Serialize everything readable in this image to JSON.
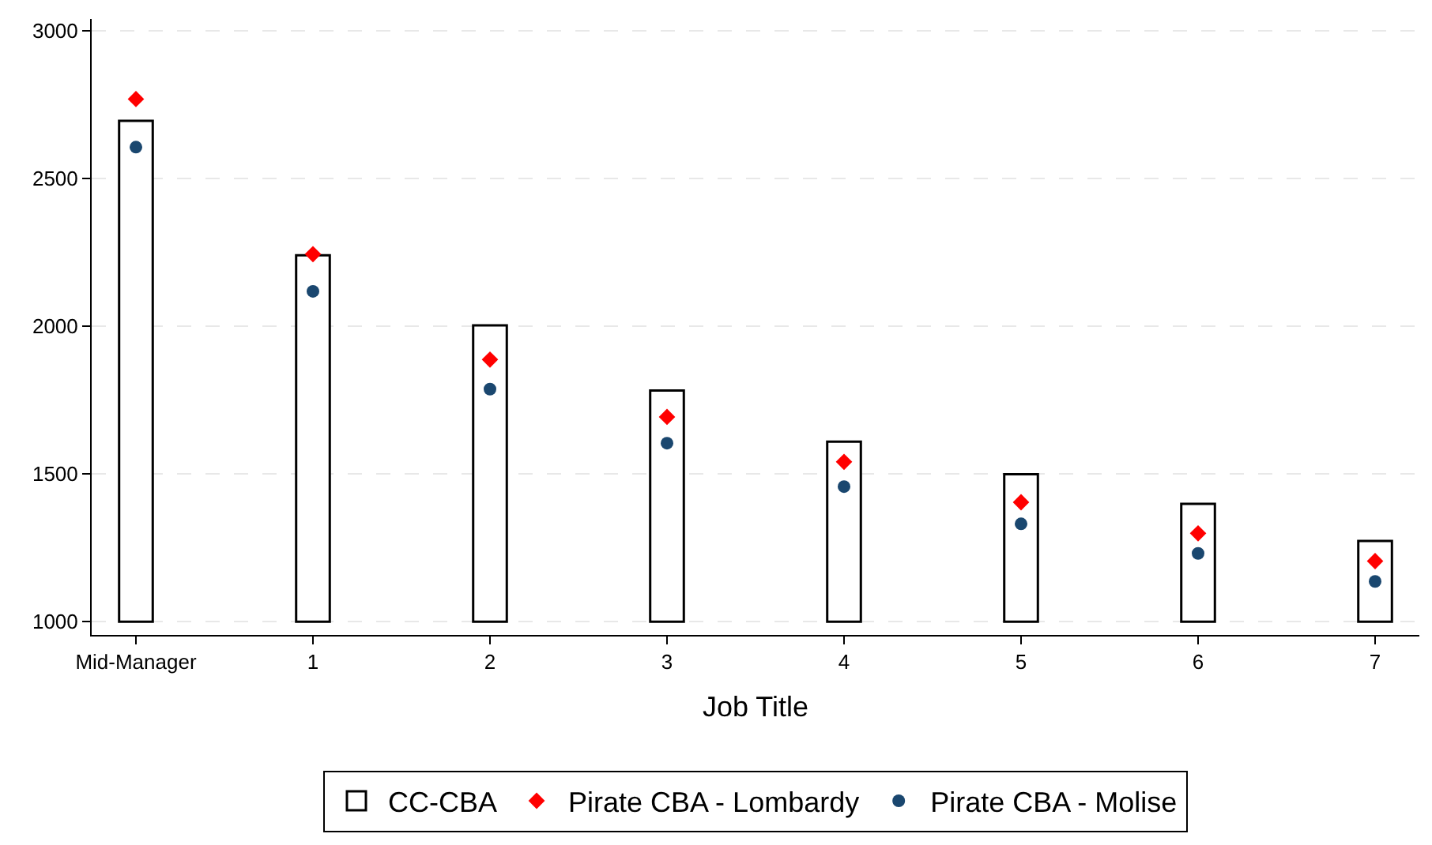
{
  "chart_data": {
    "type": "bar",
    "xlabel": "Job Title",
    "categories": [
      "Mid-Manager",
      "1",
      "2",
      "3",
      "4",
      "5",
      "6",
      "7"
    ],
    "ylim": [
      955,
      3040
    ],
    "yticks": [
      1000,
      1500,
      2000,
      2500,
      3000
    ],
    "grid": "y",
    "legend": "bottom",
    "series": [
      {
        "name": "CC-CBA",
        "color": "#ffffff",
        "base": [
          1000,
          1000,
          1000,
          1000,
          1000,
          1000,
          1000,
          1000
        ],
        "values": [
          1695,
          1240,
          1003,
          782,
          609,
          499,
          399,
          273
        ]
      },
      {
        "name": "Pirate CBA - Lombardy",
        "type": "scatter",
        "marker": "diamond",
        "color": "#ff0000",
        "values": [
          2769,
          2244,
          1887,
          1693,
          1541,
          1404,
          1299,
          1205
        ]
      },
      {
        "name": "Pirate CBA - Molise",
        "type": "scatter",
        "marker": "circle",
        "color": "#1a476f",
        "values": [
          2606,
          2118,
          1787,
          1604,
          1457,
          1331,
          1231,
          1136
        ]
      }
    ]
  }
}
